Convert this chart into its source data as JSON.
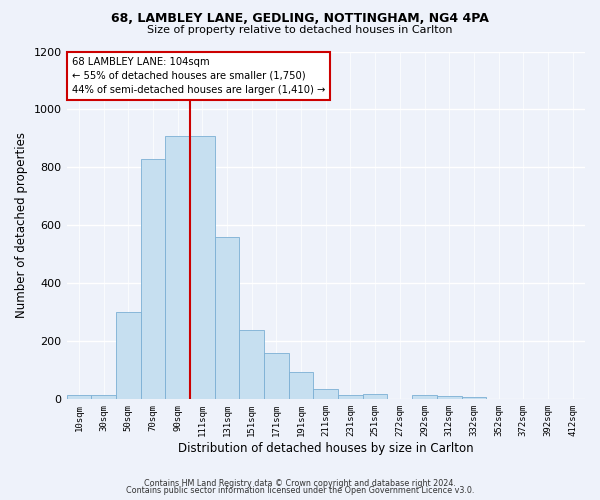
{
  "title_line1": "68, LAMBLEY LANE, GEDLING, NOTTINGHAM, NG4 4PA",
  "title_line2": "Size of property relative to detached houses in Carlton",
  "xlabel": "Distribution of detached houses by size in Carlton",
  "ylabel": "Number of detached properties",
  "bar_labels": [
    "10sqm",
    "30sqm",
    "50sqm",
    "70sqm",
    "90sqm",
    "111sqm",
    "131sqm",
    "151sqm",
    "171sqm",
    "191sqm",
    "211sqm",
    "231sqm",
    "251sqm",
    "272sqm",
    "292sqm",
    "312sqm",
    "332sqm",
    "352sqm",
    "372sqm",
    "392sqm",
    "412sqm"
  ],
  "bar_values": [
    15,
    15,
    300,
    830,
    910,
    910,
    560,
    240,
    160,
    95,
    35,
    15,
    20,
    0,
    15,
    10,
    8,
    2,
    2,
    2,
    2
  ],
  "bar_color": "#c6dff0",
  "bar_edge_color": "#7bafd4",
  "vline_color": "#cc0000",
  "vline_x_index": 5,
  "annotation_text": "68 LAMBLEY LANE: 104sqm\n← 55% of detached houses are smaller (1,750)\n44% of semi-detached houses are larger (1,410) →",
  "annotation_box_color": "#ffffff",
  "annotation_box_edge": "#cc0000",
  "ylim": [
    0,
    1200
  ],
  "yticks": [
    0,
    200,
    400,
    600,
    800,
    1000,
    1200
  ],
  "footer_line1": "Contains HM Land Registry data © Crown copyright and database right 2024.",
  "footer_line2": "Contains public sector information licensed under the Open Government Licence v3.0.",
  "bg_color": "#eef2fa"
}
